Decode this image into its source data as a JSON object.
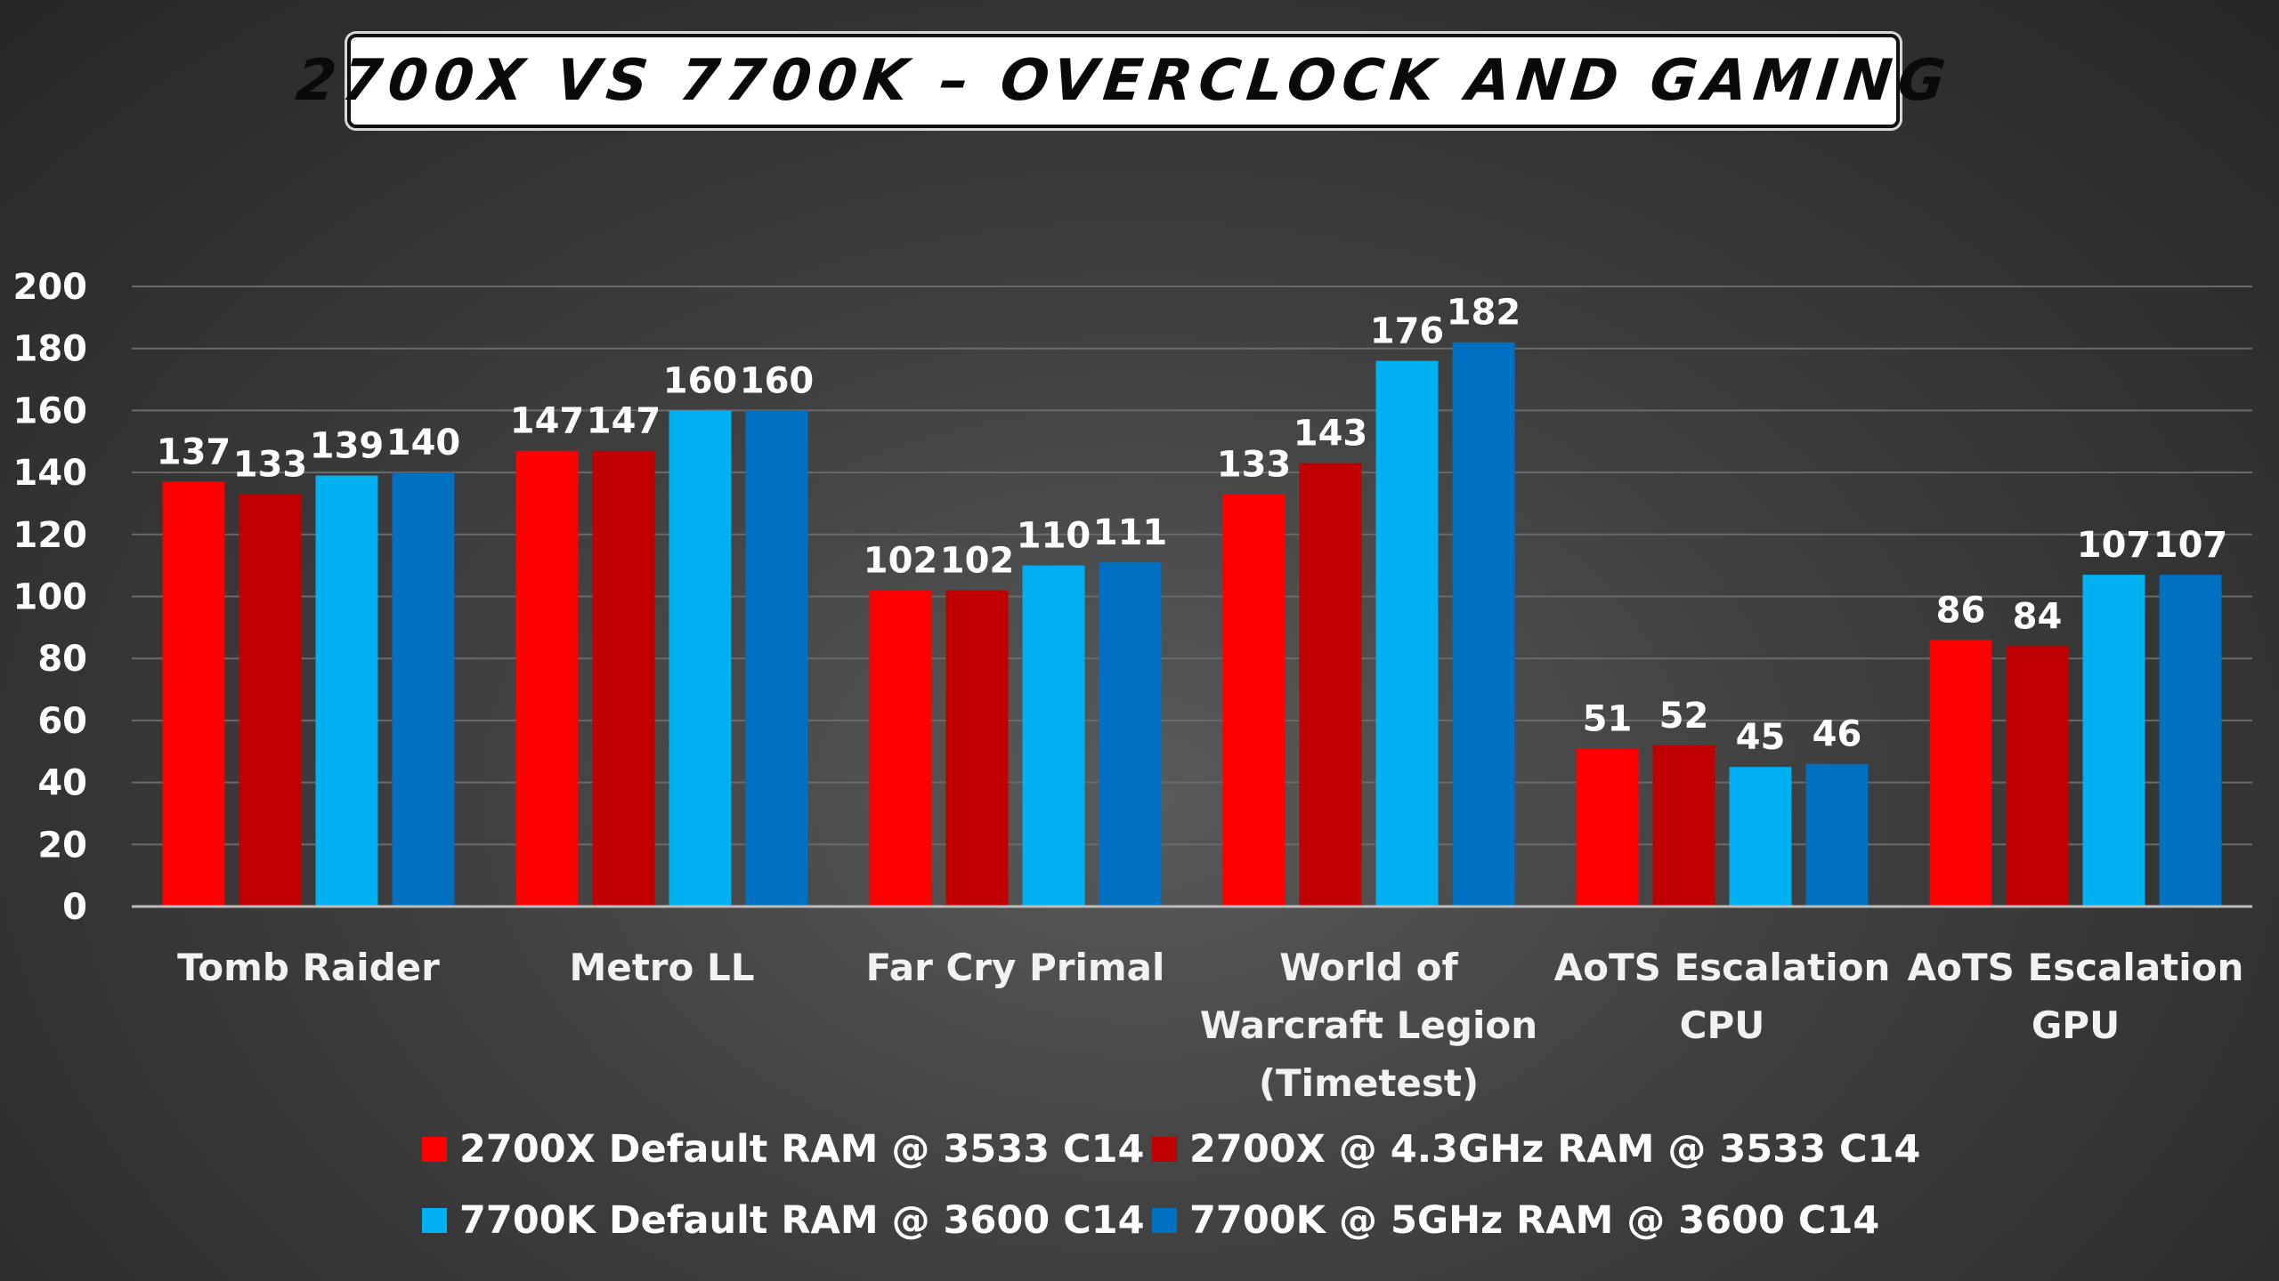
{
  "title": "2700X VS 7700K – OVERCLOCK AND GAMING",
  "colors": {
    "background": "#333333",
    "grid": "#6a6a6a",
    "axis": "#bdbdbd",
    "series": [
      "#ff0000",
      "#c00000",
      "#00b0f0",
      "#0070c0"
    ]
  },
  "chart_data": {
    "type": "bar",
    "title": "2700X VS 7700K – OVERCLOCK AND GAMING",
    "xlabel": "",
    "ylabel": "",
    "ylim": [
      0,
      200
    ],
    "yticks": [
      "0",
      "20",
      "40",
      "60",
      "80",
      "100",
      "120",
      "140",
      "160",
      "180",
      "200"
    ],
    "grid": true,
    "legend_position": "bottom",
    "categories": [
      "Tomb Raider",
      "Metro LL",
      "Far Cry Primal",
      "World of Warcraft Legion (Timetest)",
      "AoTS Escalation CPU",
      "AoTS Escalation GPU"
    ],
    "category_lines": [
      [
        "Tomb Raider"
      ],
      [
        "Metro LL"
      ],
      [
        "Far Cry Primal"
      ],
      [
        "World of",
        "Warcraft Legion",
        "(Timetest)"
      ],
      [
        "AoTS Escalation",
        "CPU"
      ],
      [
        "AoTS Escalation",
        "GPU"
      ]
    ],
    "series": [
      {
        "name": "2700X Default RAM @ 3533 C14",
        "color": "#ff0000",
        "values": [
          137,
          147,
          102,
          133,
          51,
          86
        ]
      },
      {
        "name": "2700X @ 4.3GHz RAM @ 3533 C14",
        "color": "#c00000",
        "values": [
          133,
          147,
          102,
          143,
          52,
          84
        ]
      },
      {
        "name": "7700K Default RAM @ 3600 C14",
        "color": "#00b0f0",
        "values": [
          139,
          160,
          110,
          176,
          45,
          107
        ]
      },
      {
        "name": "7700K @ 5GHz RAM @ 3600 C14",
        "color": "#0070c0",
        "values": [
          140,
          160,
          111,
          182,
          46,
          107
        ]
      }
    ]
  }
}
